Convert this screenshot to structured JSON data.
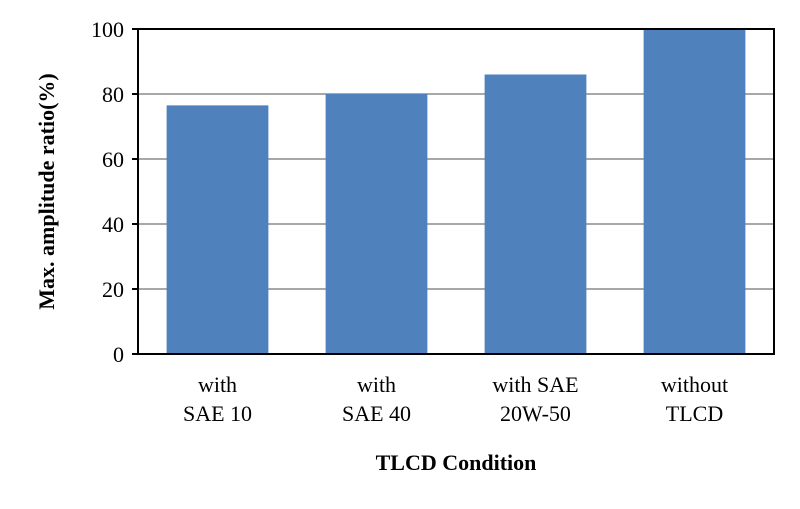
{
  "chart_data": {
    "type": "bar",
    "categories": [
      [
        "with",
        "SAE 10"
      ],
      [
        "with",
        "SAE 40"
      ],
      [
        "with SAE",
        "20W-50"
      ],
      [
        "without",
        "TLCD"
      ]
    ],
    "values": [
      76.5,
      80,
      86,
      100
    ],
    "xlabel": "TLCD Condition",
    "ylabel": "Max. amplitude ratio(%)",
    "ylim": [
      0,
      100
    ],
    "yticks": [
      0,
      20,
      40,
      60,
      80,
      100
    ],
    "grid": true,
    "bar_color": "#4F81BD",
    "grid_color": "#8C8C8C"
  }
}
